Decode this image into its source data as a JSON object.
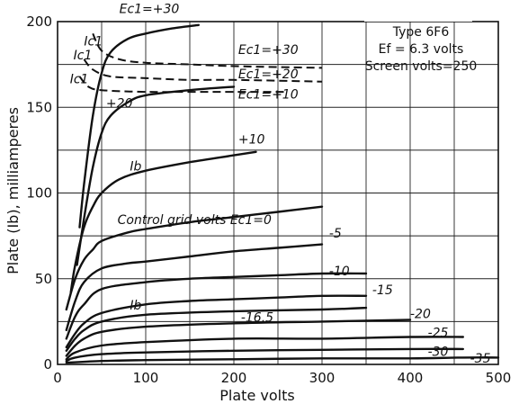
{
  "chart_data": {
    "type": "line",
    "title": "Type 6F6",
    "annotations": [
      "Type 6F6",
      "Ef = 6.3 volts",
      "Screen volts=250"
    ],
    "xlabel": "Plate volts",
    "ylabel": "Plate (Ib), milliamperes",
    "xlim": [
      0,
      500
    ],
    "ylim": [
      0,
      200
    ],
    "x_ticks": [
      "0",
      "100",
      "200",
      "300",
      "400",
      "500"
    ],
    "y_ticks": [
      "0",
      "50",
      "100",
      "150",
      "200"
    ],
    "grid": true,
    "series": [
      {
        "name": "Ec1=+30 (Ib)",
        "label": "Ec1=+30",
        "label_at": [
          70,
          205
        ],
        "x": [
          25,
          30,
          40,
          50,
          60,
          80,
          100,
          130,
          160
        ],
        "y": [
          80,
          105,
          145,
          170,
          182,
          190,
          193,
          196,
          198
        ]
      },
      {
        "name": "Ec1=+20",
        "label": "+20",
        "label_at": [
          55,
          150
        ],
        "x": [
          22,
          30,
          40,
          50,
          60,
          80,
          100,
          150,
          200
        ],
        "y": [
          58,
          85,
          115,
          135,
          145,
          153,
          157,
          160,
          162
        ]
      },
      {
        "name": "Ec1=+10",
        "label": "+10",
        "label_at": [
          205,
          129
        ],
        "x": [
          15,
          20,
          30,
          40,
          50,
          70,
          100,
          150,
          200,
          225
        ],
        "y": [
          42,
          58,
          80,
          92,
          100,
          108,
          113,
          118,
          122,
          124
        ]
      },
      {
        "name": "Ec1=0",
        "label": "Control grid volts Ec1=0",
        "label_at": [
          68,
          82
        ],
        "x": [
          10,
          20,
          30,
          40,
          50,
          80,
          100,
          150,
          200,
          250,
          300
        ],
        "y": [
          32,
          50,
          61,
          67,
          72,
          77,
          79,
          83,
          86,
          89,
          92
        ]
      },
      {
        "name": "Ec1=-5",
        "label": "-5",
        "label_at": [
          308,
          74
        ],
        "x": [
          10,
          20,
          30,
          50,
          80,
          100,
          150,
          200,
          250,
          300
        ],
        "y": [
          20,
          37,
          48,
          56,
          59,
          60,
          63,
          66,
          68,
          70
        ]
      },
      {
        "name": "Ec1=-10",
        "label": "-10",
        "label_at": [
          308,
          52
        ],
        "x": [
          10,
          20,
          30,
          50,
          100,
          150,
          200,
          250,
          300,
          350
        ],
        "y": [
          15,
          28,
          35,
          44,
          48,
          50,
          51,
          52,
          53,
          53
        ]
      },
      {
        "name": "Ec1=-15",
        "label": "-15",
        "label_at": [
          357,
          41
        ],
        "x": [
          10,
          20,
          30,
          50,
          100,
          150,
          200,
          250,
          300,
          350
        ],
        "y": [
          10,
          18,
          24,
          30,
          35,
          37,
          38,
          39,
          40,
          40
        ]
      },
      {
        "name": "Ec1=-16.5",
        "label": "-16.5",
        "label_at": [
          208,
          25
        ],
        "x": [
          10,
          20,
          30,
          50,
          100,
          200,
          300,
          350
        ],
        "y": [
          8,
          15,
          20,
          25,
          29,
          31,
          32,
          33
        ]
      },
      {
        "name": "Ec1=-20",
        "label": "-20",
        "label_at": [
          400,
          27
        ],
        "x": [
          10,
          20,
          30,
          50,
          100,
          200,
          300,
          400
        ],
        "y": [
          5,
          11,
          15,
          19,
          22,
          24,
          25,
          26
        ]
      },
      {
        "name": "Ec1=-25",
        "label": "-25",
        "label_at": [
          420,
          16
        ],
        "x": [
          10,
          20,
          50,
          100,
          200,
          300,
          400,
          460
        ],
        "y": [
          3,
          7,
          11,
          13,
          15,
          15,
          16,
          16
        ]
      },
      {
        "name": "Ec1=-30",
        "label": "-30",
        "label_at": [
          420,
          5
        ],
        "x": [
          10,
          20,
          50,
          100,
          200,
          300,
          400,
          460
        ],
        "y": [
          2,
          4,
          6,
          7,
          8,
          8.5,
          9,
          9
        ]
      },
      {
        "name": "Ec1=-35",
        "label": "-35",
        "label_at": [
          468,
          1
        ],
        "x": [
          10,
          50,
          100,
          200,
          300,
          400,
          460,
          500
        ],
        "y": [
          1,
          2,
          2.5,
          3,
          3.5,
          3.5,
          4,
          4
        ]
      }
    ],
    "screen_curves": [
      {
        "name": "Ic1 Ec1=+30",
        "label": "Ec1=+30",
        "label_at": [
          205,
          181
        ],
        "x": [
          40,
          50,
          70,
          100,
          150,
          200,
          300
        ],
        "y": [
          193,
          183,
          178,
          176,
          175,
          174,
          173
        ]
      },
      {
        "name": "Ic1 Ec1=+20",
        "label": "Ec1=+20",
        "label_at": [
          205,
          167
        ],
        "x": [
          30,
          40,
          60,
          100,
          150,
          200,
          300
        ],
        "y": [
          178,
          172,
          168,
          167,
          166,
          166,
          165
        ]
      },
      {
        "name": "Ic1 Ec1=+10",
        "label": "Ec1=+10",
        "label_at": [
          205,
          155
        ],
        "x": [
          25,
          35,
          50,
          100,
          150,
          200,
          260
        ],
        "y": [
          168,
          162,
          160,
          159,
          159,
          159,
          159
        ]
      }
    ],
    "curve_group_labels": [
      {
        "text": "Ib",
        "at": [
          82,
          113
        ]
      },
      {
        "text": "Ib",
        "at": [
          82,
          32
        ]
      },
      {
        "text": "Ic1",
        "at": [
          30,
          186
        ]
      },
      {
        "text": "Ic1",
        "at": [
          18,
          178
        ]
      },
      {
        "text": "Ic1",
        "at": [
          14,
          164
        ]
      }
    ]
  }
}
